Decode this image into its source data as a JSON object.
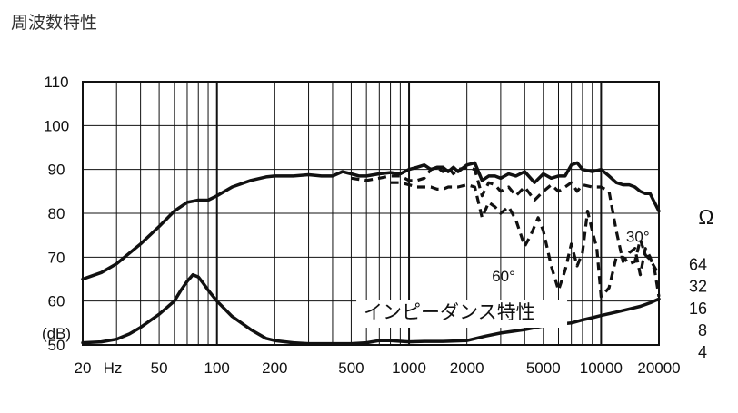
{
  "page": {
    "title": "周波数特性"
  },
  "chart_data": {
    "type": "line",
    "title": "周波数特性",
    "x_scale": "log",
    "xlim": [
      20,
      20000
    ],
    "ylim": [
      50,
      110
    ],
    "y_unit_label": "(dB)",
    "x_unit_label": "Hz",
    "grid": true,
    "x_ticks": [
      {
        "value": 20,
        "label": "20"
      },
      {
        "value": 50,
        "label": "50"
      },
      {
        "value": 100,
        "label": "100"
      },
      {
        "value": 200,
        "label": "200"
      },
      {
        "value": 500,
        "label": "500"
      },
      {
        "value": 1000,
        "label": "1000"
      },
      {
        "value": 2000,
        "label": "2000"
      },
      {
        "value": 5000,
        "label": "5000"
      },
      {
        "value": 10000,
        "label": "10000"
      },
      {
        "value": 20000,
        "label": "20000"
      }
    ],
    "y_ticks": [
      {
        "value": 110,
        "label": "110"
      },
      {
        "value": 100,
        "label": "100"
      },
      {
        "value": 90,
        "label": "90"
      },
      {
        "value": 80,
        "label": "80"
      },
      {
        "value": 70,
        "label": "70"
      },
      {
        "value": 60,
        "label": "60"
      },
      {
        "value": 50,
        "label": "50"
      }
    ],
    "impedance_axis": {
      "unit": "Ω",
      "ticks": [
        {
          "value": 64,
          "label": "64",
          "db": 67.5
        },
        {
          "value": 32,
          "label": "32",
          "db": 62.5
        },
        {
          "value": 16,
          "label": "16",
          "db": 57.5
        },
        {
          "value": 8,
          "label": "8",
          "db": 52.5
        },
        {
          "value": 4,
          "label": "4",
          "db": 47.5
        }
      ]
    },
    "annotations": [
      {
        "text": "30°",
        "x": 13500,
        "y": 73.5
      },
      {
        "text": "60°",
        "x": 2700,
        "y": 64.5
      },
      {
        "text": "インピーダンス特性",
        "x": 580,
        "y": 56
      }
    ],
    "series": [
      {
        "style": "solid",
        "points": [
          [
            20,
            65
          ],
          [
            25,
            66.5
          ],
          [
            30,
            68.5
          ],
          [
            40,
            73
          ],
          [
            50,
            77
          ],
          [
            60,
            80.5
          ],
          [
            70,
            82.5
          ],
          [
            80,
            83
          ],
          [
            90,
            83
          ],
          [
            100,
            84
          ],
          [
            120,
            86
          ],
          [
            150,
            87.5
          ],
          [
            180,
            88.3
          ],
          [
            200,
            88.5
          ],
          [
            250,
            88.5
          ],
          [
            300,
            88.8
          ],
          [
            350,
            88.5
          ],
          [
            400,
            88.5
          ],
          [
            450,
            89.5
          ],
          [
            500,
            89
          ],
          [
            550,
            88.5
          ],
          [
            600,
            88.5
          ],
          [
            700,
            89
          ],
          [
            800,
            89.3
          ],
          [
            900,
            89
          ],
          [
            1000,
            90
          ],
          [
            1100,
            90.5
          ],
          [
            1200,
            91
          ],
          [
            1300,
            90
          ],
          [
            1400,
            90.5
          ],
          [
            1500,
            90.5
          ],
          [
            1600,
            89.5
          ],
          [
            1700,
            90.5
          ],
          [
            1800,
            89.5
          ],
          [
            2000,
            91
          ],
          [
            2200,
            91.5
          ],
          [
            2400,
            87.5
          ],
          [
            2600,
            88.5
          ],
          [
            2800,
            88.5
          ],
          [
            3000,
            88
          ],
          [
            3300,
            89
          ],
          [
            3600,
            88.5
          ],
          [
            4000,
            89.5
          ],
          [
            4500,
            87
          ],
          [
            5000,
            89
          ],
          [
            5500,
            88
          ],
          [
            6000,
            88.5
          ],
          [
            6500,
            88.5
          ],
          [
            7000,
            91
          ],
          [
            7500,
            91.5
          ],
          [
            8000,
            90
          ],
          [
            9000,
            89.5
          ],
          [
            10000,
            90
          ],
          [
            11000,
            88.5
          ],
          [
            12000,
            87
          ],
          [
            13000,
            86.5
          ],
          [
            14000,
            86.5
          ],
          [
            15000,
            86
          ],
          [
            16000,
            85
          ],
          [
            17000,
            84.5
          ],
          [
            18000,
            84.5
          ],
          [
            20000,
            80.5
          ]
        ]
      },
      {
        "style": "dashed",
        "points": [
          [
            500,
            88
          ],
          [
            600,
            87.5
          ],
          [
            700,
            88
          ],
          [
            800,
            88.5
          ],
          [
            900,
            88.5
          ],
          [
            1000,
            87.5
          ],
          [
            1100,
            87.5
          ],
          [
            1200,
            88
          ],
          [
            1300,
            90
          ],
          [
            1400,
            90.5
          ],
          [
            1500,
            89.5
          ],
          [
            1600,
            90.5
          ],
          [
            1700,
            89
          ],
          [
            1800,
            90
          ],
          [
            2000,
            90.5
          ],
          [
            2200,
            90
          ],
          [
            2400,
            84
          ],
          [
            2600,
            87
          ],
          [
            2800,
            86.5
          ],
          [
            3000,
            85
          ],
          [
            3300,
            86
          ],
          [
            3600,
            84
          ],
          [
            4000,
            86
          ],
          [
            4500,
            83
          ],
          [
            5000,
            85
          ],
          [
            5500,
            86.5
          ],
          [
            6000,
            85
          ],
          [
            6500,
            86
          ],
          [
            7000,
            87
          ],
          [
            7500,
            85
          ],
          [
            8000,
            86.5
          ],
          [
            9000,
            86
          ],
          [
            10000,
            86
          ],
          [
            11000,
            85
          ],
          [
            12000,
            76
          ],
          [
            13000,
            69
          ],
          [
            14000,
            71
          ],
          [
            15000,
            72
          ],
          [
            16000,
            66
          ],
          [
            17000,
            72
          ],
          [
            18000,
            70
          ],
          [
            19000,
            67
          ],
          [
            20000,
            61
          ]
        ]
      },
      {
        "style": "dashed",
        "points": [
          [
            800,
            87
          ],
          [
            900,
            87
          ],
          [
            1000,
            86.5
          ],
          [
            1100,
            86
          ],
          [
            1200,
            86
          ],
          [
            1300,
            86
          ],
          [
            1400,
            85.5
          ],
          [
            1500,
            85.5
          ],
          [
            1600,
            86
          ],
          [
            1700,
            86
          ],
          [
            1800,
            86
          ],
          [
            2000,
            86.5
          ],
          [
            2200,
            86
          ],
          [
            2400,
            79
          ],
          [
            2600,
            82.5
          ],
          [
            2800,
            81.5
          ],
          [
            3000,
            80
          ],
          [
            3300,
            81.5
          ],
          [
            3600,
            78.5
          ],
          [
            4000,
            72.5
          ],
          [
            4300,
            75
          ],
          [
            4700,
            79
          ],
          [
            5000,
            76
          ],
          [
            5500,
            68
          ],
          [
            6000,
            62.5
          ],
          [
            6500,
            67
          ],
          [
            7000,
            73
          ],
          [
            7500,
            68
          ],
          [
            8000,
            71
          ],
          [
            8500,
            80.5
          ],
          [
            9000,
            76
          ],
          [
            9500,
            72
          ],
          [
            10000,
            61
          ],
          [
            11000,
            63
          ],
          [
            12000,
            70
          ],
          [
            13000,
            70
          ],
          [
            14000,
            68.5
          ],
          [
            15000,
            69
          ],
          [
            16000,
            74
          ],
          [
            17000,
            70.5
          ],
          [
            18000,
            69.5
          ],
          [
            20000,
            66
          ]
        ]
      },
      {
        "style": "solid",
        "points": [
          [
            20,
            50.5
          ],
          [
            25,
            50.7
          ],
          [
            30,
            51.3
          ],
          [
            35,
            52.5
          ],
          [
            40,
            54
          ],
          [
            50,
            57
          ],
          [
            60,
            60
          ],
          [
            65,
            62.5
          ],
          [
            70,
            64.5
          ],
          [
            75,
            66
          ],
          [
            80,
            65.5
          ],
          [
            85,
            64
          ],
          [
            90,
            62.5
          ],
          [
            100,
            60
          ],
          [
            120,
            56.5
          ],
          [
            150,
            53.5
          ],
          [
            180,
            51.5
          ],
          [
            200,
            51
          ],
          [
            250,
            50.5
          ],
          [
            300,
            50.3
          ],
          [
            400,
            50.3
          ],
          [
            500,
            50.3
          ],
          [
            600,
            50.5
          ],
          [
            700,
            51
          ],
          [
            800,
            51
          ],
          [
            1000,
            50.7
          ],
          [
            1200,
            50.8
          ],
          [
            1500,
            50.8
          ],
          [
            2000,
            51
          ],
          [
            2500,
            52
          ],
          [
            3000,
            52.7
          ],
          [
            4000,
            53.5
          ],
          [
            5000,
            54.3
          ],
          [
            6000,
            54.7
          ],
          [
            7000,
            55
          ],
          [
            8000,
            55.7
          ],
          [
            9000,
            56.2
          ],
          [
            10000,
            56.7
          ],
          [
            12000,
            57.5
          ],
          [
            14000,
            58.2
          ],
          [
            16000,
            58.8
          ],
          [
            18000,
            59.6
          ],
          [
            20000,
            60.5
          ]
        ]
      }
    ]
  }
}
